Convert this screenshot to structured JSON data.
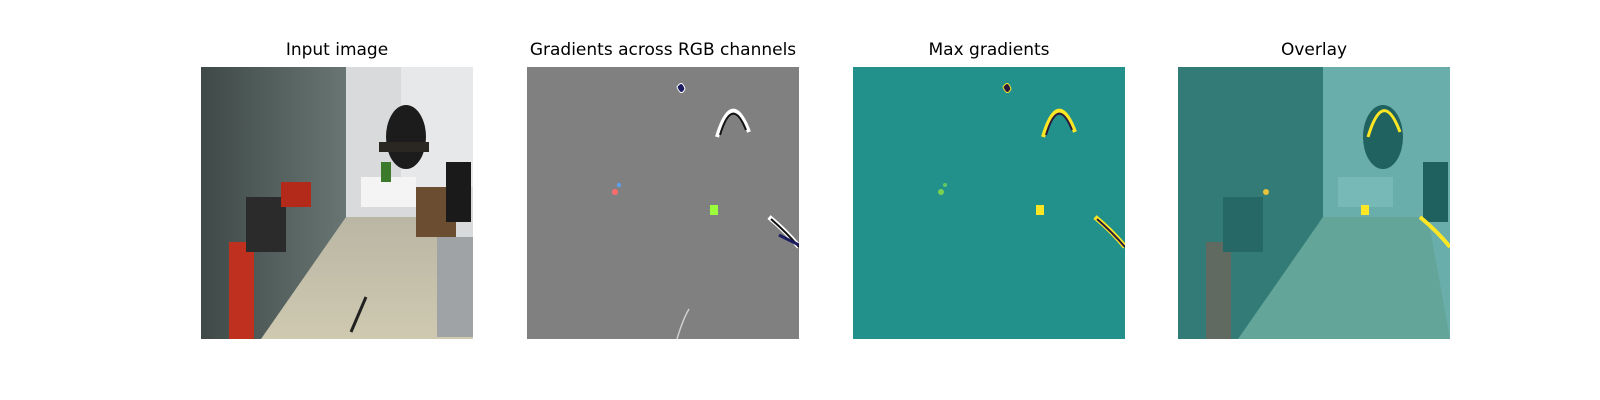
{
  "figure": {
    "panels": [
      {
        "title": "Input image"
      },
      {
        "title": "Gradients across RGB channels"
      },
      {
        "title": "Max gradients"
      },
      {
        "title": "Overlay"
      }
    ]
  },
  "colors": {
    "background": "#ffffff",
    "gradient_gray": "#808080",
    "max_gradient_teal": "#22908b",
    "overlay_tint": "#21918c",
    "highlight_yellow": "#fde725",
    "robot_red": "#c0301e"
  }
}
